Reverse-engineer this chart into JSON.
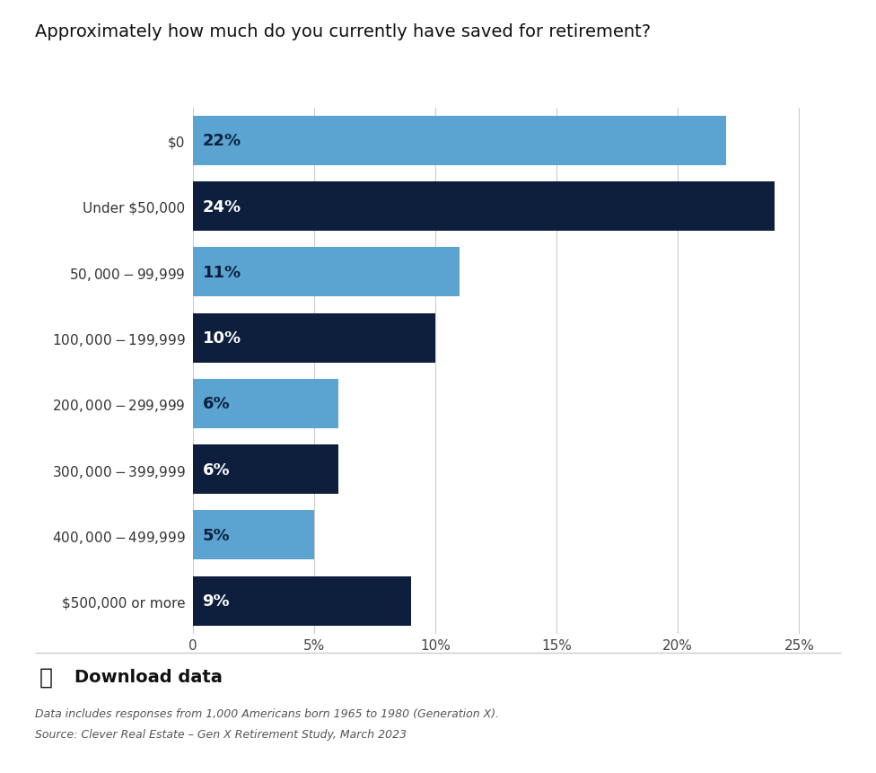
{
  "title": "Approximately how much do you currently have saved for retirement?",
  "categories": [
    "$0",
    "Under $50,000",
    "$50,000 - $99,999",
    "$100,000 - $199,999",
    "$200,000 - $299,999",
    "$300,000 - $399,999",
    "$400,000 - $499,999",
    "$500,000 or more"
  ],
  "values": [
    22,
    24,
    11,
    10,
    6,
    6,
    5,
    9
  ],
  "colors": [
    "#5BA3D0",
    "#0D1F3C",
    "#5BA3D0",
    "#0D1F3C",
    "#5BA3D0",
    "#0D1F3C",
    "#5BA3D0",
    "#0D1F3C"
  ],
  "label_colors": [
    "#0D1F3C",
    "#ffffff",
    "#0D1F3C",
    "#ffffff",
    "#0D1F3C",
    "#ffffff",
    "#0D1F3C",
    "#ffffff"
  ],
  "xlim": [
    0,
    26
  ],
  "xticks": [
    0,
    5,
    10,
    15,
    20,
    25
  ],
  "xticklabels": [
    "0",
    "5%",
    "10%",
    "15%",
    "20%",
    "25%"
  ],
  "footnote1": "Data includes responses from 1,000 Americans born 1965 to 1980 (Generation X).",
  "footnote2": "Source: Clever Real Estate – Gen X Retirement Study, March 2023",
  "download_text": "Download data",
  "background_color": "#ffffff",
  "title_fontsize": 14,
  "label_fontsize": 13,
  "tick_fontsize": 11,
  "ytick_fontsize": 11,
  "footnote_fontsize": 9,
  "bar_height": 0.75
}
